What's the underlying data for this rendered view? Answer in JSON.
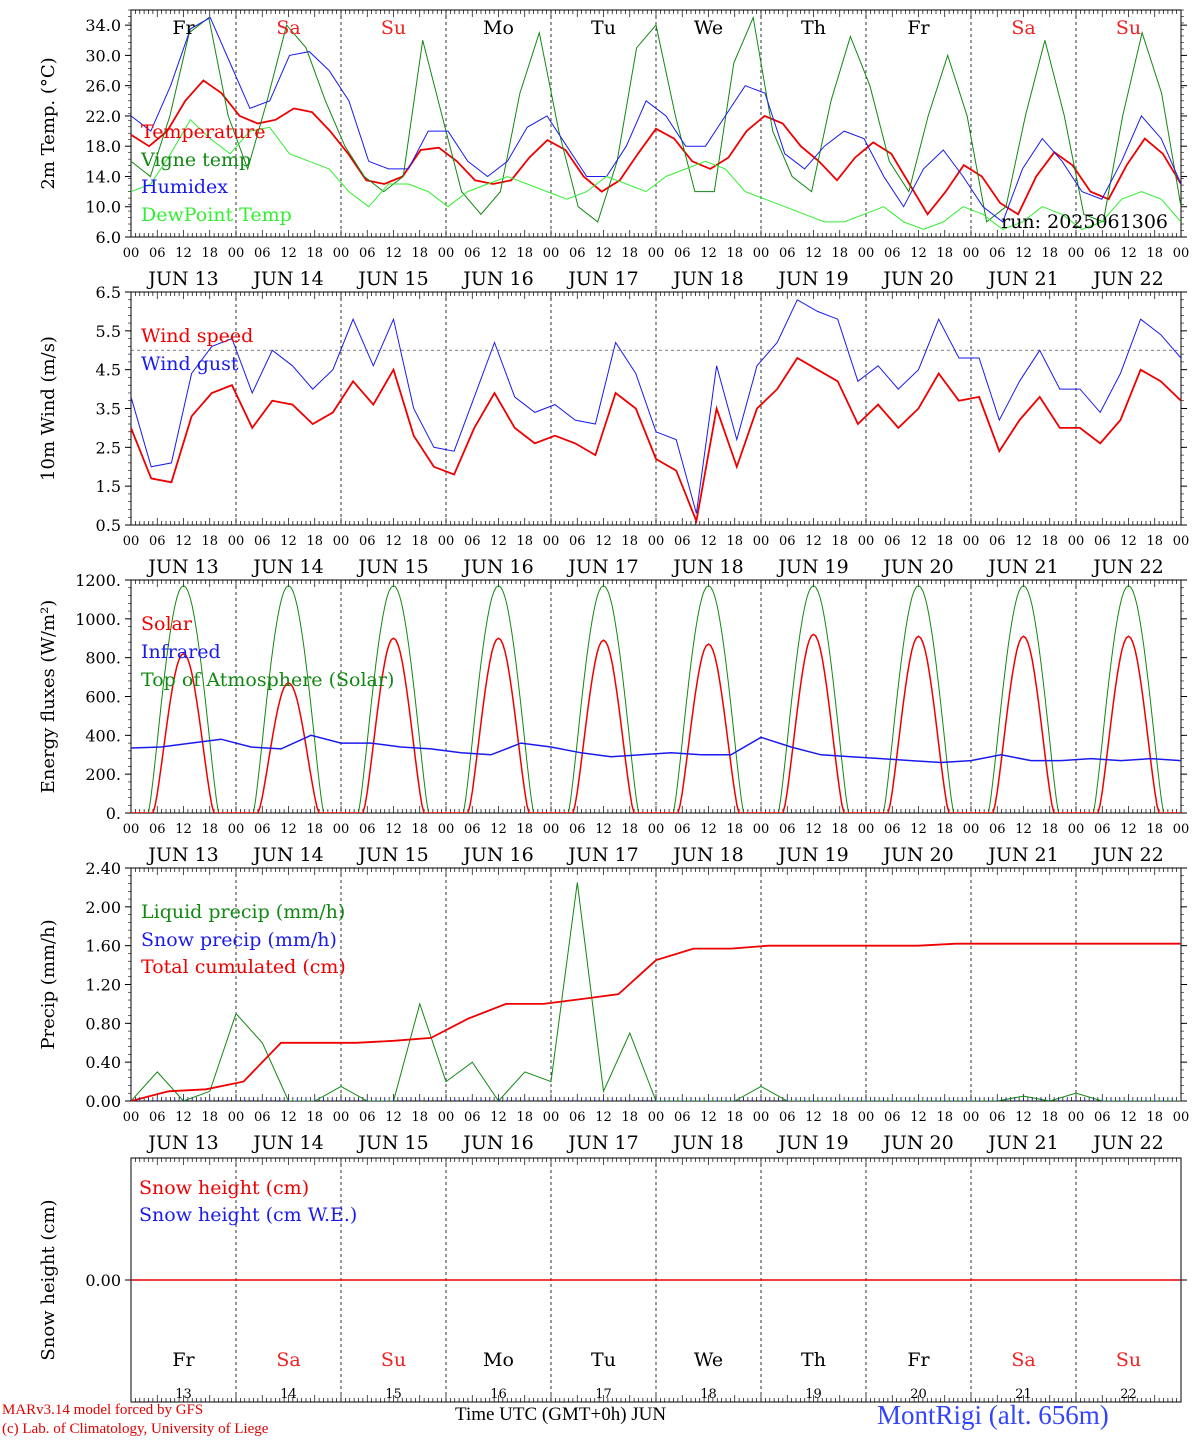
{
  "footer": {
    "credit_line1": "MARv3.14 model forced by GFS",
    "credit_line2": "(c) Lab. of Climatology, University of Liege",
    "x_title": "Time UTC (GMT+0h) JUN",
    "station": "MontRigi (alt. 656m)"
  },
  "colors": {
    "red": "#ee0000",
    "green": "#118811",
    "blue": "#1a1aee",
    "lightgreen": "#33ee33",
    "sunday": "#ee2222"
  },
  "time_axis": {
    "hour_labels": [
      "00",
      "06",
      "12",
      "18"
    ],
    "end_label": "00",
    "dates": [
      "JUN 13",
      "JUN 14",
      "JUN 15",
      "JUN 16",
      "JUN 17",
      "JUN 18",
      "JUN 19",
      "JUN 20",
      "JUN 21",
      "JUN 22"
    ],
    "weekdays": [
      "Fr",
      "Sa",
      "Su",
      "Mo",
      "Tu",
      "We",
      "Th",
      "Fr",
      "Sa",
      "Su"
    ],
    "weekend_flags": [
      false,
      true,
      true,
      false,
      false,
      false,
      false,
      false,
      true,
      true
    ],
    "day_numbers": [
      "13",
      "14",
      "15",
      "16",
      "17",
      "18",
      "19",
      "20",
      "21",
      "22"
    ]
  },
  "chart_data": [
    {
      "id": "temperature",
      "type": "line",
      "ylabel": "2m Temp. (°C)",
      "ylim": [
        6,
        36
      ],
      "yticks": [
        "6.0",
        "10.0",
        "14.0",
        "18.0",
        "22.0",
        "26.0",
        "30.0",
        "34.0"
      ],
      "ytick_values": [
        6,
        10,
        14,
        18,
        22,
        26,
        30,
        34
      ],
      "annotation": "run: 2025061306",
      "x_step_hours": 6,
      "series": [
        {
          "name": "Temperature",
          "color": "red",
          "values": [
            19.5,
            18,
            20,
            24,
            26.7,
            25,
            22,
            21,
            21.5,
            23,
            22.5,
            20,
            17,
            13.5,
            13,
            14,
            17.5,
            17.8,
            16,
            13.5,
            13,
            13.5,
            16.5,
            18.8,
            17.5,
            14,
            12,
            13.5,
            17,
            20.3,
            19,
            16,
            15,
            16.5,
            20,
            22,
            21,
            18,
            16,
            13.5,
            16.5,
            18.5,
            17,
            13,
            9,
            12,
            15.5,
            14,
            10.5,
            9,
            14,
            17.2,
            15.5,
            12,
            11,
            15.5,
            19,
            17,
            13
          ]
        },
        {
          "name": "Vigne temp",
          "color": "green",
          "values": [
            16,
            14,
            22,
            33,
            35,
            22,
            15,
            24,
            34,
            31,
            24,
            18,
            14,
            12,
            14,
            32,
            22,
            12,
            9,
            12,
            25,
            33,
            20,
            10,
            8,
            16,
            31,
            34,
            22,
            12,
            12,
            29,
            35,
            20,
            14,
            12,
            24,
            32.5,
            26,
            16,
            12,
            22,
            30,
            22,
            8,
            10,
            22,
            32,
            22,
            9,
            8,
            22,
            33,
            25,
            10
          ]
        },
        {
          "name": "Humidex",
          "color": "blue",
          "values": [
            22,
            20,
            26,
            33.5,
            35,
            29,
            23,
            24,
            30,
            30.5,
            28,
            24,
            16,
            15,
            15,
            20,
            20,
            16,
            14,
            16,
            20.5,
            22,
            18,
            14,
            14,
            18,
            24,
            22,
            18,
            18,
            22,
            26,
            25,
            17,
            15,
            18,
            20,
            19,
            14,
            10,
            15,
            17.5,
            14,
            10,
            8,
            15,
            19,
            16,
            12,
            11,
            16,
            22,
            19,
            13
          ]
        },
        {
          "name": "DewPoint Temp",
          "color": "lightgreen",
          "values": [
            12,
            13,
            17,
            21.5,
            19,
            17,
            20,
            20.5,
            17,
            16,
            15,
            12,
            10,
            13,
            13,
            12,
            10,
            12,
            13,
            14,
            13,
            12,
            11,
            12,
            14,
            13,
            12,
            14,
            15,
            16,
            15,
            12,
            11,
            10,
            9,
            8,
            8,
            9,
            10,
            8,
            7,
            8,
            10,
            9,
            7,
            8,
            10,
            9,
            7,
            8,
            11,
            12,
            11,
            8
          ]
        }
      ],
      "legend": [
        "Temperature",
        "Vigne temp",
        "Humidex",
        "DewPoint Temp"
      ]
    },
    {
      "id": "wind",
      "type": "line",
      "ylabel": "10m Wind (m/s)",
      "ylim": [
        0.5,
        6.5
      ],
      "yticks": [
        "0.5",
        "1.5",
        "2.5",
        "3.5",
        "4.5",
        "5.5",
        "6.5"
      ],
      "ytick_values": [
        0.5,
        1.5,
        2.5,
        3.5,
        4.5,
        5.5,
        6.5
      ],
      "reference_line": 5.0,
      "x_step_hours": 6,
      "series": [
        {
          "name": "Wind speed",
          "color": "red",
          "values": [
            3.0,
            1.7,
            1.6,
            3.3,
            3.9,
            4.1,
            3.0,
            3.7,
            3.6,
            3.1,
            3.4,
            4.2,
            3.6,
            4.5,
            2.8,
            2.0,
            1.8,
            3.0,
            3.9,
            3.0,
            2.6,
            2.8,
            2.6,
            2.3,
            3.9,
            3.5,
            2.2,
            1.9,
            0.6,
            3.5,
            2.0,
            3.5,
            4.0,
            4.8,
            4.5,
            4.2,
            3.1,
            3.6,
            3.0,
            3.5,
            4.4,
            3.7,
            3.8,
            2.4,
            3.2,
            3.8,
            3.0,
            3.0,
            2.6,
            3.2,
            4.5,
            4.2,
            3.7
          ]
        },
        {
          "name": "Wind gust",
          "color": "blue",
          "values": [
            3.8,
            2.0,
            2.1,
            4.4,
            5.1,
            5.3,
            3.9,
            5.0,
            4.6,
            4.0,
            4.5,
            5.8,
            4.6,
            5.8,
            3.5,
            2.5,
            2.4,
            3.8,
            5.2,
            3.8,
            3.4,
            3.6,
            3.2,
            3.1,
            5.2,
            4.4,
            2.9,
            2.7,
            0.8,
            4.6,
            2.7,
            4.6,
            5.2,
            6.3,
            6.0,
            5.8,
            4.2,
            4.6,
            4.0,
            4.5,
            5.8,
            4.8,
            4.8,
            3.2,
            4.2,
            5.0,
            4.0,
            4.0,
            3.4,
            4.4,
            5.8,
            5.4,
            4.8
          ]
        }
      ],
      "legend": [
        "Wind speed",
        "Wind gust"
      ]
    },
    {
      "id": "energy",
      "type": "line",
      "ylabel": "Energy fluxes (W/m²)",
      "ylim": [
        0,
        1200
      ],
      "yticks": [
        "0.",
        "200.",
        "400.",
        "600.",
        "800.",
        "1000.",
        "1200."
      ],
      "ytick_values": [
        0,
        200,
        400,
        600,
        800,
        1000,
        1200
      ],
      "series": [
        {
          "name": "Solar",
          "color": "red",
          "daily_peaks": [
            820,
            670,
            900,
            900,
            890,
            870,
            920,
            910,
            910,
            910
          ]
        },
        {
          "name": "Infrared",
          "color": "blue",
          "values": [
            335,
            340,
            360,
            380,
            340,
            330,
            400,
            360,
            360,
            340,
            330,
            310,
            300,
            360,
            340,
            310,
            290,
            300,
            310,
            300,
            300,
            390,
            340,
            300,
            290,
            280,
            270,
            260,
            270,
            300,
            270,
            270,
            280,
            270,
            280,
            270
          ]
        },
        {
          "name": "Top of Atmosphere (Solar)",
          "color": "green",
          "daily_peak": 1170
        }
      ],
      "legend": [
        "Solar",
        "Infrared",
        "Top of Atmosphere (Solar)"
      ]
    },
    {
      "id": "precip",
      "type": "line",
      "ylabel": "Precip (mm/h)",
      "ylim": [
        0,
        2.4
      ],
      "yticks": [
        "0.00",
        "0.40",
        "0.80",
        "1.20",
        "1.60",
        "2.00",
        "2.40"
      ],
      "ytick_values": [
        0,
        0.4,
        0.8,
        1.2,
        1.6,
        2.0,
        2.4
      ],
      "series": [
        {
          "name": "Liquid precip (mm/h)",
          "color": "green",
          "values": [
            0,
            0.3,
            0,
            0.1,
            0.9,
            0.6,
            0,
            0,
            0.15,
            0,
            0,
            1.0,
            0.2,
            0.4,
            0,
            0.3,
            0.2,
            2.25,
            0.1,
            0.7,
            0,
            0,
            0,
            0,
            0.15,
            0,
            0,
            0,
            0,
            0,
            0,
            0,
            0,
            0,
            0.05,
            0,
            0.08,
            0,
            0,
            0,
            0
          ]
        },
        {
          "name": "Snow precip (mm/h)",
          "color": "blue",
          "values": [
            0,
            0
          ]
        },
        {
          "name": "Total cumulated (cm)",
          "color": "red",
          "values": [
            0,
            0.1,
            0.12,
            0.2,
            0.6,
            0.6,
            0.6,
            0.62,
            0.65,
            0.85,
            1.0,
            1.0,
            1.05,
            1.1,
            1.45,
            1.57,
            1.57,
            1.6,
            1.6,
            1.6,
            1.6,
            1.6,
            1.62,
            1.62,
            1.62,
            1.62,
            1.62,
            1.62,
            1.62
          ]
        }
      ],
      "legend": [
        "Liquid precip (mm/h)",
        "Snow precip (mm/h)",
        "Total cumulated (cm)"
      ]
    },
    {
      "id": "snow",
      "type": "line",
      "ylabel": "Snow height (cm)",
      "yticks": [
        "0.00"
      ],
      "ytick_values": [
        0
      ],
      "series": [
        {
          "name": "Snow height (cm)",
          "color": "red",
          "values": [
            0,
            0
          ]
        },
        {
          "name": "Snow height (cm W.E.)",
          "color": "blue",
          "values": [
            0,
            0
          ]
        }
      ],
      "legend": [
        "Snow height (cm)",
        "Snow height (cm W.E.)"
      ]
    }
  ]
}
